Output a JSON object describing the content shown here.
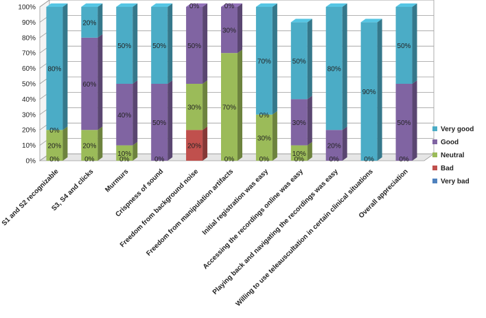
{
  "chart_data": {
    "type": "bar",
    "stacked": true,
    "ylim": [
      0,
      100
    ],
    "yticks": [
      "0%",
      "10%",
      "20%",
      "30%",
      "40%",
      "50%",
      "60%",
      "70%",
      "80%",
      "90%",
      "100%"
    ],
    "legend_position": "right",
    "categories": [
      "S1 and S2 recognizable",
      "S3, S4 and clicks",
      "Murmurs",
      "Crispness of sound",
      "Freedom from background noise",
      "Freedom from manipulation artifacts",
      "Initial registration was easy",
      "Accessing the recordings online was easy",
      "Playing back and navigating the recordings was easy",
      "Willing to use teleauscultation in certain clinical situations",
      "Overall appreciation"
    ],
    "series": [
      {
        "name": "Very bad",
        "color": "#4f81bd",
        "values": [
          0,
          0,
          0,
          0,
          0,
          0,
          0,
          0,
          0,
          0,
          0
        ],
        "labels": [
          "0%",
          "0%",
          "0%",
          "0%",
          "",
          "0%",
          "0%",
          "0%",
          "0%",
          "0%",
          "0%"
        ]
      },
      {
        "name": "Bad",
        "color": "#c0504d",
        "values": [
          0,
          0,
          0,
          0,
          20,
          0,
          0,
          0,
          0,
          0,
          0
        ],
        "labels": [
          "",
          "",
          "",
          "",
          "20%",
          "",
          "",
          "",
          "",
          "",
          ""
        ]
      },
      {
        "name": "Neutral",
        "color": "#9bbb59",
        "values": [
          20,
          20,
          10,
          0,
          30,
          70,
          30,
          10,
          0,
          0,
          0
        ],
        "labels": [
          "20%",
          "20%",
          "10%",
          "",
          "30%",
          "70%",
          "30%",
          "10%",
          "",
          "",
          ""
        ]
      },
      {
        "name": "Good",
        "color": "#8064a2",
        "values": [
          0,
          60,
          40,
          50,
          50,
          30,
          0,
          30,
          20,
          0,
          50
        ],
        "labels": [
          "0%",
          "60%",
          "40%",
          "50%",
          "50%",
          "30%",
          "0%",
          "30%",
          "20%",
          "",
          "50%"
        ]
      },
      {
        "name": "Very good",
        "color": "#4bacc6",
        "values": [
          80,
          20,
          50,
          50,
          0,
          0,
          70,
          50,
          80,
          90,
          50
        ],
        "labels": [
          "80%",
          "20%",
          "50%",
          "50%",
          "0%",
          "0%",
          "70%",
          "50%",
          "80%",
          "90%",
          "50%"
        ]
      }
    ],
    "legend_order": [
      "Very good",
      "Good",
      "Neutral",
      "Bad",
      "Very bad"
    ]
  }
}
